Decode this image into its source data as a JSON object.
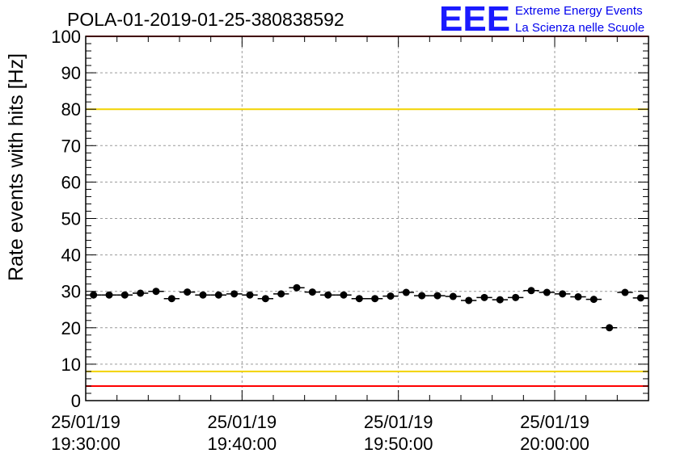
{
  "chart_data": {
    "type": "scatter",
    "title": "POLA-01-2019-01-25-380838592",
    "xlabel": "",
    "ylabel": "Rate events with hits [Hz]",
    "ylim": [
      0,
      100
    ],
    "yticks": [
      0,
      10,
      20,
      30,
      40,
      50,
      60,
      70,
      80,
      90,
      100
    ],
    "x_range_minutes": [
      0,
      36
    ],
    "x_ticks": [
      {
        "minute": 0,
        "date": "25/01/19",
        "time": "19:30:00"
      },
      {
        "minute": 10,
        "date": "25/01/19",
        "time": "19:40:00"
      },
      {
        "minute": 20,
        "date": "25/01/19",
        "time": "19:50:00"
      },
      {
        "minute": 30,
        "date": "25/01/19",
        "time": "20:00:00"
      }
    ],
    "grid": true,
    "reference_lines": [
      {
        "y": 80,
        "color": "#f2d300"
      },
      {
        "y": 8,
        "color": "#f2d300"
      },
      {
        "y": 100,
        "color": "#ff0000"
      },
      {
        "y": 4,
        "color": "#ff0000"
      }
    ],
    "series": [
      {
        "marker_color": "#000000",
        "x_minutes": [
          0.5,
          1.5,
          2.5,
          3.5,
          4.5,
          5.5,
          6.5,
          7.5,
          8.5,
          9.5,
          10.5,
          11.5,
          12.5,
          13.5,
          14.5,
          15.5,
          16.5,
          17.5,
          18.5,
          19.5,
          20.5,
          21.5,
          22.5,
          23.5,
          24.5,
          25.5,
          26.5,
          27.5,
          28.5,
          29.5,
          30.5,
          31.5,
          32.5,
          33.5,
          34.5,
          35.5
        ],
        "y": [
          29.0,
          29.0,
          29.0,
          29.5,
          30.0,
          28.0,
          29.8,
          29.0,
          29.0,
          29.3,
          29.0,
          28.0,
          29.3,
          31.0,
          29.8,
          29.0,
          29.0,
          28.0,
          28.0,
          28.7,
          29.7,
          28.8,
          28.8,
          28.6,
          27.5,
          28.3,
          27.7,
          28.3,
          30.2,
          29.7,
          29.3,
          28.5,
          27.8,
          20.0,
          29.7,
          28.2
        ]
      }
    ]
  },
  "logo": {
    "mark": "EEE",
    "line1": "Extreme Energy Events",
    "line2": "La Scienza nelle Scuole"
  }
}
